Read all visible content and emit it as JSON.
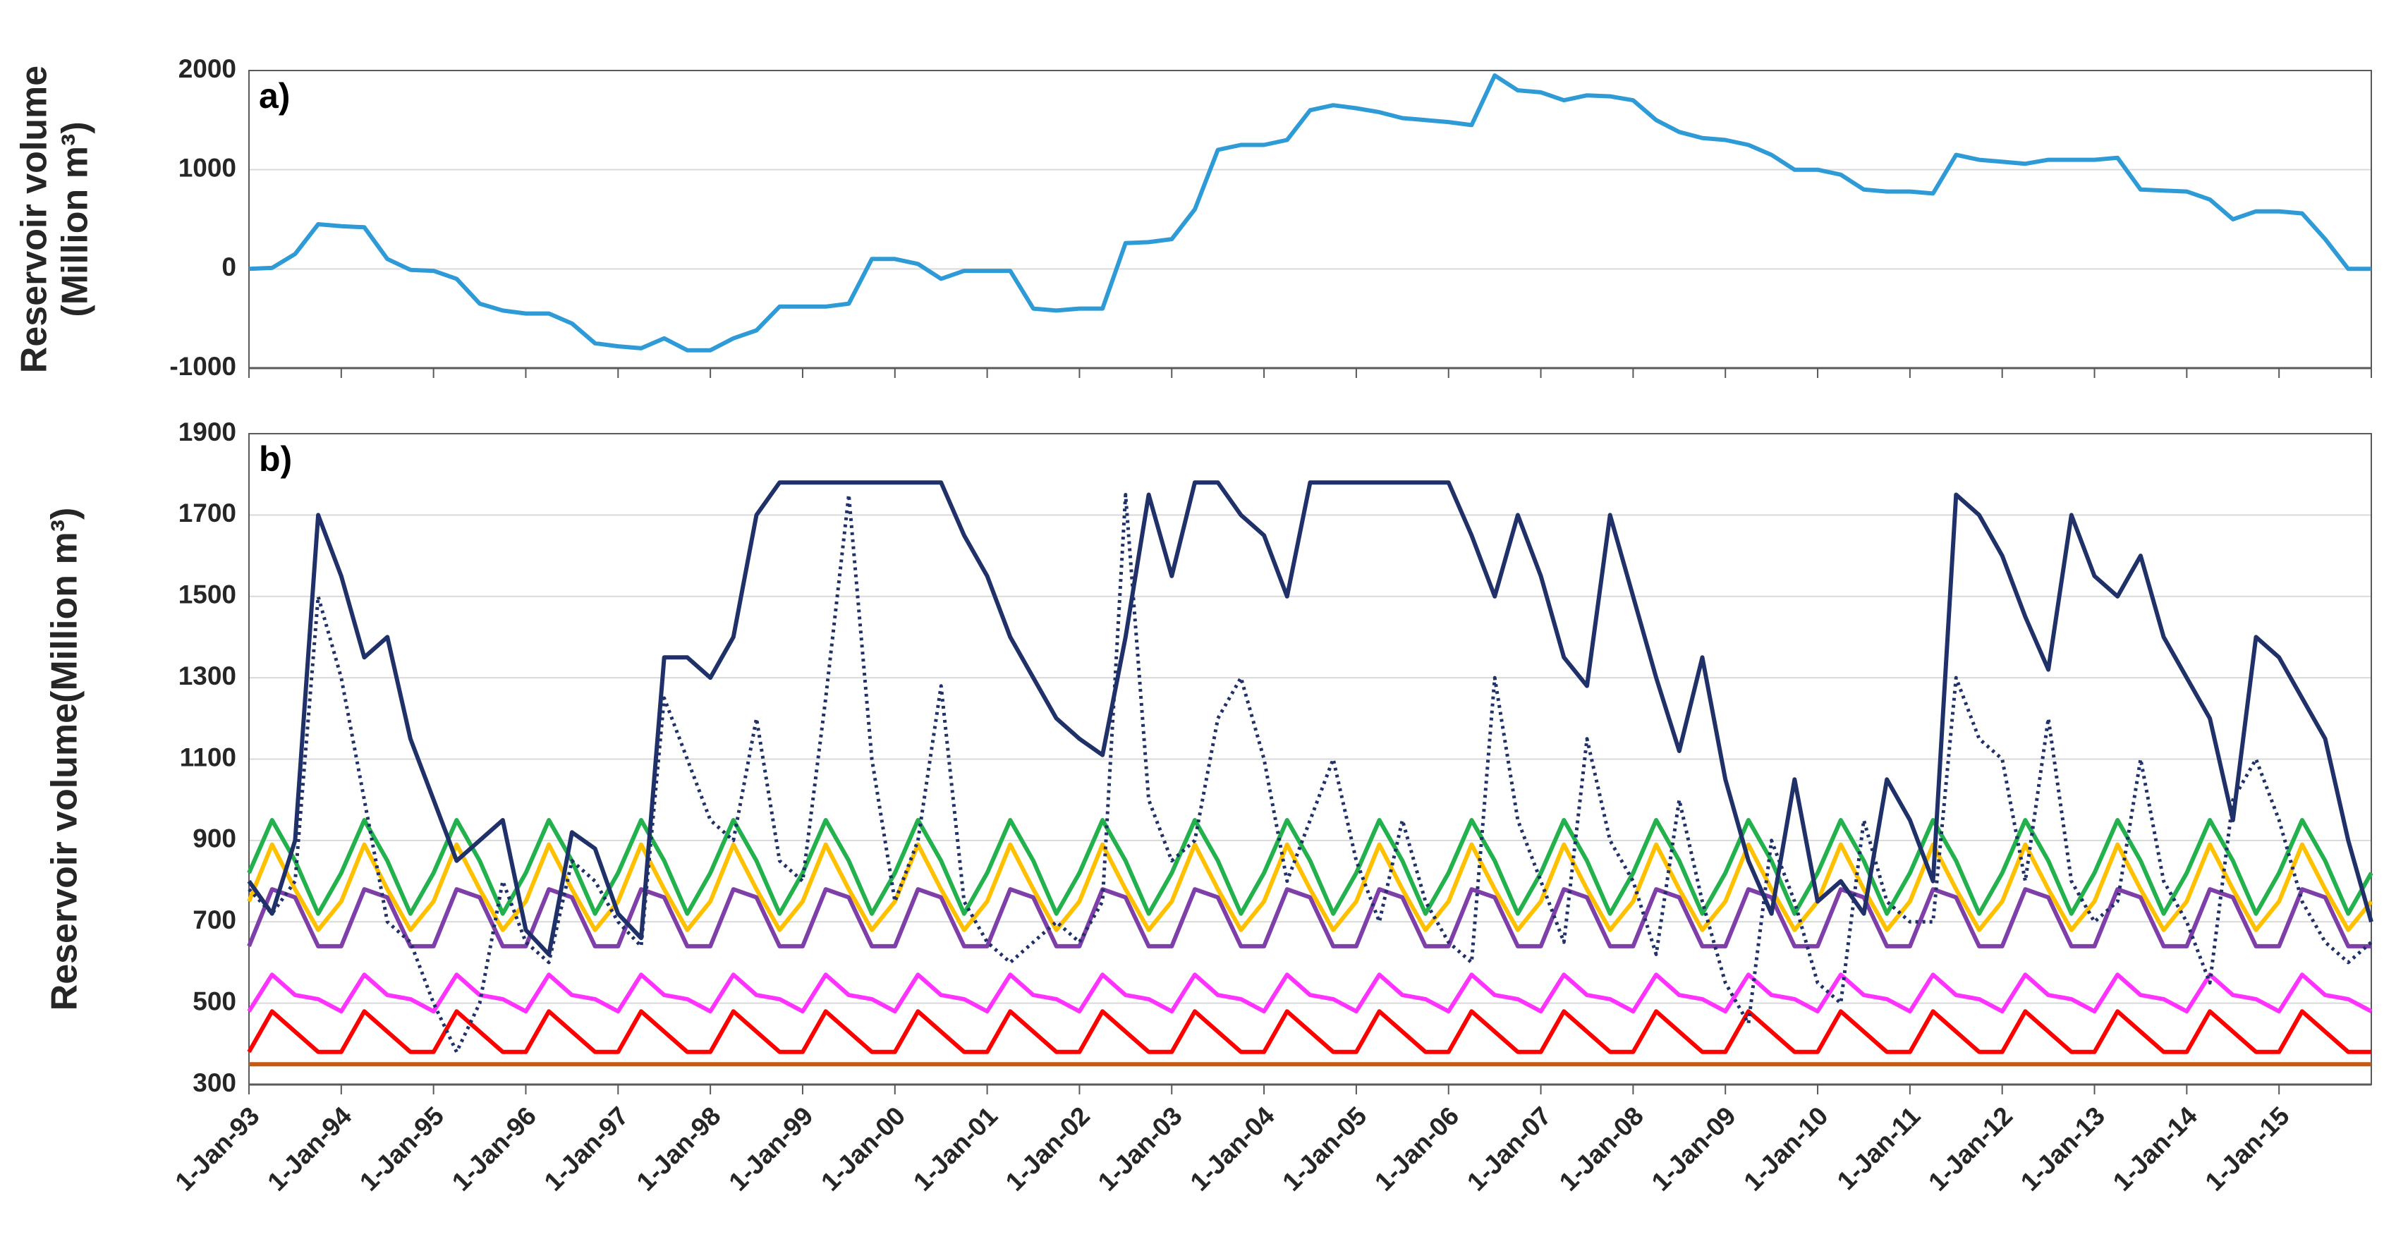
{
  "chart_data": [
    {
      "type": "line",
      "annotation": "a)",
      "ylabel": [
        "Reservoir volume",
        "(Million m³)"
      ],
      "xlim": [
        1993,
        2016
      ],
      "xticks": [
        1993,
        1994,
        1995,
        1996,
        1997,
        1998,
        1999,
        2000,
        2001,
        2002,
        2003,
        2004,
        2005,
        2006,
        2007,
        2008,
        2009,
        2010,
        2011,
        2012,
        2013,
        2014,
        2015,
        2016
      ],
      "ylim": [
        -1000,
        2000
      ],
      "yticks": [
        -1000,
        0,
        1000,
        2000
      ],
      "grid": true,
      "x": [
        1993,
        1993.25,
        1993.5,
        1993.75,
        1994,
        1994.25,
        1994.5,
        1994.75,
        1995,
        1995.25,
        1995.5,
        1995.75,
        1996,
        1996.25,
        1996.5,
        1996.75,
        1997,
        1997.25,
        1997.5,
        1997.75,
        1998,
        1998.25,
        1998.5,
        1998.75,
        1999,
        1999.25,
        1999.5,
        1999.75,
        2000,
        2000.25,
        2000.5,
        2000.75,
        2001,
        2001.25,
        2001.5,
        2001.75,
        2002,
        2002.25,
        2002.5,
        2002.75,
        2003,
        2003.25,
        2003.5,
        2003.75,
        2004,
        2004.25,
        2004.5,
        2004.75,
        2005,
        2005.25,
        2005.5,
        2005.75,
        2006,
        2006.25,
        2006.5,
        2006.75,
        2007,
        2007.25,
        2007.5,
        2007.75,
        2008,
        2008.25,
        2008.5,
        2008.75,
        2009,
        2009.25,
        2009.5,
        2009.75,
        2010,
        2010.25,
        2010.5,
        2010.75,
        2011,
        2011.25,
        2011.5,
        2011.75,
        2012,
        2012.25,
        2012.5,
        2012.75,
        2013,
        2013.25,
        2013.5,
        2013.75,
        2014,
        2014.25,
        2014.5,
        2014.75,
        2015,
        2015.25,
        2015.5,
        2015.75,
        2016
      ],
      "series": [
        {
          "color": "#2e9bd6",
          "values": [
            0,
            10,
            150,
            450,
            430,
            420,
            100,
            -10,
            -20,
            -100,
            -350,
            -420,
            -450,
            -450,
            -550,
            -750,
            -780,
            -800,
            -700,
            -820,
            -820,
            -700,
            -620,
            -380,
            -380,
            -380,
            -350,
            100,
            100,
            50,
            -100,
            -20,
            -20,
            -20,
            -400,
            -420,
            -400,
            -400,
            260,
            270,
            300,
            600,
            1200,
            1250,
            1250,
            1300,
            1600,
            1650,
            1620,
            1580,
            1520,
            1500,
            1480,
            1450,
            1950,
            1800,
            1780,
            1700,
            1750,
            1740,
            1700,
            1500,
            1380,
            1320,
            1300,
            1250,
            1150,
            1000,
            1000,
            950,
            800,
            780,
            780,
            760,
            1150,
            1100,
            1080,
            1060,
            1100,
            1100,
            1100,
            1120,
            800,
            790,
            780,
            700,
            500,
            580,
            580,
            560,
            300,
            0,
            0
          ]
        }
      ]
    },
    {
      "type": "line",
      "annotation": "b)",
      "ylabel": "Reservoir volume(Million m³)",
      "xlim": [
        1993,
        2016
      ],
      "xticks": [
        {
          "value": 1993,
          "label": "1-Jan-93"
        },
        {
          "value": 1994,
          "label": "1-Jan-94"
        },
        {
          "value": 1995,
          "label": "1-Jan-95"
        },
        {
          "value": 1996,
          "label": "1-Jan-96"
        },
        {
          "value": 1997,
          "label": "1-Jan-97"
        },
        {
          "value": 1998,
          "label": "1-Jan-98"
        },
        {
          "value": 1999,
          "label": "1-Jan-99"
        },
        {
          "value": 2000,
          "label": "1-Jan-00"
        },
        {
          "value": 2001,
          "label": "1-Jan-01"
        },
        {
          "value": 2002,
          "label": "1-Jan-02"
        },
        {
          "value": 2003,
          "label": "1-Jan-03"
        },
        {
          "value": 2004,
          "label": "1-Jan-04"
        },
        {
          "value": 2005,
          "label": "1-Jan-05"
        },
        {
          "value": 2006,
          "label": "1-Jan-06"
        },
        {
          "value": 2007,
          "label": "1-Jan-07"
        },
        {
          "value": 2008,
          "label": "1-Jan-08"
        },
        {
          "value": 2009,
          "label": "1-Jan-09"
        },
        {
          "value": 2010,
          "label": "1-Jan-10"
        },
        {
          "value": 2011,
          "label": "1-Jan-11"
        },
        {
          "value": 2012,
          "label": "1-Jan-12"
        },
        {
          "value": 2013,
          "label": "1-Jan-13"
        },
        {
          "value": 2014,
          "label": "1-Jan-14"
        },
        {
          "value": 2015,
          "label": "1-Jan-15"
        }
      ],
      "ylim": [
        300,
        1900
      ],
      "yticks": [
        300,
        500,
        700,
        900,
        1100,
        1300,
        1500,
        1700,
        1900
      ],
      "grid": true,
      "x": [
        1993,
        1993.25,
        1993.5,
        1993.75,
        1994,
        1994.25,
        1994.5,
        1994.75,
        1995,
        1995.25,
        1995.5,
        1995.75,
        1996,
        1996.25,
        1996.5,
        1996.75,
        1997,
        1997.25,
        1997.5,
        1997.75,
        1998,
        1998.25,
        1998.5,
        1998.75,
        1999,
        1999.25,
        1999.5,
        1999.75,
        2000,
        2000.25,
        2000.5,
        2000.75,
        2001,
        2001.25,
        2001.5,
        2001.75,
        2002,
        2002.25,
        2002.5,
        2002.75,
        2003,
        2003.25,
        2003.5,
        2003.75,
        2004,
        2004.25,
        2004.5,
        2004.75,
        2005,
        2005.25,
        2005.5,
        2005.75,
        2006,
        2006.25,
        2006.5,
        2006.75,
        2007,
        2007.25,
        2007.5,
        2007.75,
        2008,
        2008.25,
        2008.5,
        2008.75,
        2009,
        2009.25,
        2009.5,
        2009.75,
        2010,
        2010.25,
        2010.5,
        2010.75,
        2011,
        2011.25,
        2011.5,
        2011.75,
        2012,
        2012.25,
        2012.5,
        2012.75,
        2013,
        2013.25,
        2013.5,
        2013.75,
        2014,
        2014.25,
        2014.5,
        2014.75,
        2015,
        2015.25,
        2015.5,
        2015.75,
        2016
      ],
      "series": [
        {
          "color": "#c55a11",
          "x": [
            1993,
            2016
          ],
          "values": [
            350,
            350
          ]
        },
        {
          "color": "#ff0000",
          "values": [
            380,
            480,
            430,
            380,
            380,
            480,
            430,
            380,
            380,
            480,
            430,
            380,
            380,
            480,
            430,
            380,
            380,
            480,
            430,
            380,
            380,
            480,
            430,
            380,
            380,
            480,
            430,
            380,
            380,
            480,
            430,
            380,
            380,
            480,
            430,
            380,
            380,
            480,
            430,
            380,
            380,
            480,
            430,
            380,
            380,
            480,
            430,
            380,
            380,
            480,
            430,
            380,
            380,
            480,
            430,
            380,
            380,
            480,
            430,
            380,
            380,
            480,
            430,
            380,
            380,
            480,
            430,
            380,
            380,
            480,
            430,
            380,
            380,
            480,
            430,
            380,
            380,
            480,
            430,
            380,
            380,
            480,
            430,
            380,
            380,
            480,
            430,
            380,
            380,
            480,
            430,
            380,
            380
          ]
        },
        {
          "color": "#ff33ff",
          "values": [
            480,
            570,
            520,
            510,
            480,
            570,
            520,
            510,
            480,
            570,
            520,
            510,
            480,
            570,
            520,
            510,
            480,
            570,
            520,
            510,
            480,
            570,
            520,
            510,
            480,
            570,
            520,
            510,
            480,
            570,
            520,
            510,
            480,
            570,
            520,
            510,
            480,
            570,
            520,
            510,
            480,
            570,
            520,
            510,
            480,
            570,
            520,
            510,
            480,
            570,
            520,
            510,
            480,
            570,
            520,
            510,
            480,
            570,
            520,
            510,
            480,
            570,
            520,
            510,
            480,
            570,
            520,
            510,
            480,
            570,
            520,
            510,
            480,
            570,
            520,
            510,
            480,
            570,
            520,
            510,
            480,
            570,
            520,
            510,
            480,
            570,
            520,
            510,
            480,
            570,
            520,
            510,
            480
          ]
        },
        {
          "color": "#7f3fa8",
          "values": [
            640,
            780,
            760,
            640,
            640,
            780,
            760,
            640,
            640,
            780,
            760,
            640,
            640,
            780,
            760,
            640,
            640,
            780,
            760,
            640,
            640,
            780,
            760,
            640,
            640,
            780,
            760,
            640,
            640,
            780,
            760,
            640,
            640,
            780,
            760,
            640,
            640,
            780,
            760,
            640,
            640,
            780,
            760,
            640,
            640,
            780,
            760,
            640,
            640,
            780,
            760,
            640,
            640,
            780,
            760,
            640,
            640,
            780,
            760,
            640,
            640,
            780,
            760,
            640,
            640,
            780,
            760,
            640,
            640,
            780,
            760,
            640,
            640,
            780,
            760,
            640,
            640,
            780,
            760,
            640,
            640,
            780,
            760,
            640,
            640,
            780,
            760,
            640,
            640,
            780,
            760,
            640,
            640
          ]
        },
        {
          "color": "#ffc000",
          "values": [
            750,
            890,
            780,
            680,
            750,
            890,
            780,
            680,
            750,
            890,
            780,
            680,
            750,
            890,
            780,
            680,
            750,
            890,
            780,
            680,
            750,
            890,
            780,
            680,
            750,
            890,
            780,
            680,
            750,
            890,
            780,
            680,
            750,
            890,
            780,
            680,
            750,
            890,
            780,
            680,
            750,
            890,
            780,
            680,
            750,
            890,
            780,
            680,
            750,
            890,
            780,
            680,
            750,
            890,
            780,
            680,
            750,
            890,
            780,
            680,
            750,
            890,
            780,
            680,
            750,
            890,
            780,
            680,
            750,
            890,
            780,
            680,
            750,
            890,
            780,
            680,
            750,
            890,
            780,
            680,
            750,
            890,
            780,
            680,
            750,
            890,
            780,
            680,
            750,
            890,
            780,
            680,
            750
          ]
        },
        {
          "color": "#22b14c",
          "values": [
            820,
            950,
            850,
            720,
            820,
            950,
            850,
            720,
            820,
            950,
            850,
            720,
            820,
            950,
            850,
            720,
            820,
            950,
            850,
            720,
            820,
            950,
            850,
            720,
            820,
            950,
            850,
            720,
            820,
            950,
            850,
            720,
            820,
            950,
            850,
            720,
            820,
            950,
            850,
            720,
            820,
            950,
            850,
            720,
            820,
            950,
            850,
            720,
            820,
            950,
            850,
            720,
            820,
            950,
            850,
            720,
            820,
            950,
            850,
            720,
            820,
            950,
            850,
            720,
            820,
            950,
            850,
            720,
            820,
            950,
            850,
            720,
            820,
            950,
            850,
            720,
            820,
            950,
            850,
            720,
            820,
            950,
            850,
            720,
            820,
            950,
            850,
            720,
            820,
            950,
            850,
            720,
            820
          ]
        },
        {
          "color": "#1f3168",
          "style": "dotted",
          "values": [
            780,
            720,
            800,
            1500,
            1300,
            1000,
            700,
            650,
            500,
            380,
            500,
            800,
            650,
            600,
            850,
            800,
            700,
            640,
            1250,
            1100,
            950,
            900,
            1200,
            850,
            800,
            1250,
            1750,
            1100,
            750,
            900,
            1280,
            750,
            650,
            600,
            650,
            700,
            650,
            750,
            1750,
            1000,
            850,
            900,
            1200,
            1300,
            1100,
            800,
            950,
            1100,
            850,
            700,
            950,
            750,
            650,
            600,
            1300,
            950,
            800,
            650,
            1150,
            900,
            800,
            620,
            1000,
            750,
            550,
            450,
            900,
            750,
            550,
            500,
            950,
            750,
            700,
            700,
            1300,
            1150,
            1100,
            800,
            1200,
            800,
            700,
            750,
            1100,
            800,
            700,
            550,
            1000,
            1100,
            950,
            750,
            650,
            600,
            650
          ]
        },
        {
          "color": "#1f3168",
          "values": [
            800,
            720,
            900,
            1700,
            1550,
            1350,
            1400,
            1150,
            1000,
            850,
            900,
            950,
            680,
            620,
            920,
            880,
            720,
            660,
            1350,
            1350,
            1300,
            1400,
            1700,
            1780,
            1780,
            1780,
            1780,
            1780,
            1780,
            1780,
            1780,
            1650,
            1550,
            1400,
            1300,
            1200,
            1150,
            1110,
            1400,
            1750,
            1550,
            1780,
            1780,
            1700,
            1650,
            1500,
            1780,
            1780,
            1780,
            1780,
            1780,
            1780,
            1780,
            1650,
            1500,
            1700,
            1550,
            1350,
            1280,
            1700,
            1500,
            1300,
            1120,
            1350,
            1050,
            850,
            720,
            1050,
            750,
            800,
            720,
            1050,
            950,
            800,
            1750,
            1700,
            1600,
            1450,
            1320,
            1700,
            1550,
            1500,
            1600,
            1400,
            1300,
            1200,
            950,
            1400,
            1350,
            1250,
            1150,
            900,
            700
          ]
        }
      ]
    }
  ]
}
